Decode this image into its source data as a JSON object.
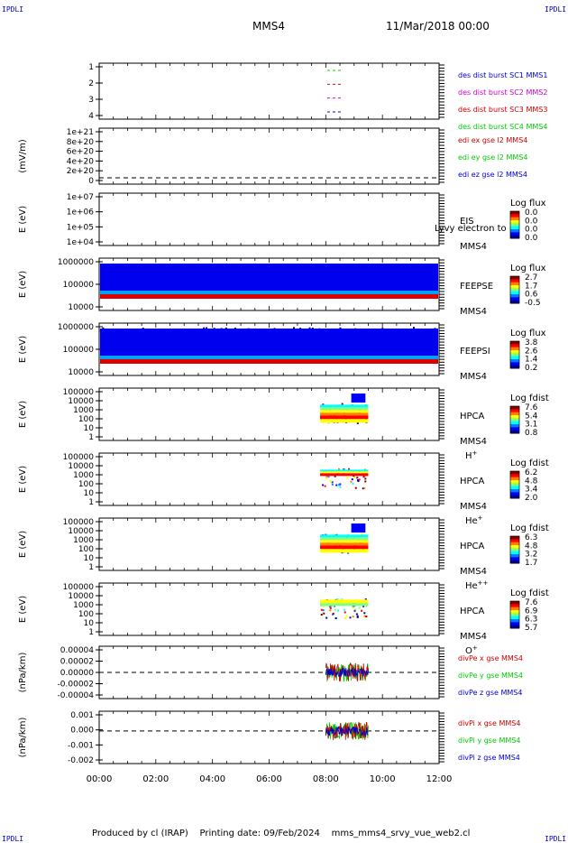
{
  "header": {
    "corner_label": "IPDLI",
    "spacecraft": "MMS4",
    "datetime": "11/Mar/2018 00:00"
  },
  "footer": {
    "produced_by": "Produced by cl (IRAP)",
    "printing_date": "Printing date: 09/Feb/2024",
    "script_name": "mms_mms4_srvy_vue_web2.cl"
  },
  "chart_data": [
    {
      "type": "scatter",
      "ylabel": "",
      "yticks": [
        "1",
        "2",
        "3",
        "4"
      ],
      "x_range": [
        0,
        12
      ],
      "legend": [
        {
          "text": "des dist burst SC1 MMS1",
          "color": "#0000cc"
        },
        {
          "text": "des dist burst SC2 MMS2",
          "color": "#cc00cc"
        },
        {
          "text": "des dist burst SC3 MMS3",
          "color": "#cc0000"
        },
        {
          "text": "des dist burst SC4 MMS4",
          "color": "#00cc00"
        }
      ],
      "series": [
        {
          "y": 1,
          "start": 8.05,
          "end": 8.55,
          "color": "#0000cc"
        },
        {
          "y": 2,
          "start": 8.05,
          "end": 8.55,
          "color": "#cc00cc"
        },
        {
          "y": 3,
          "start": 8.05,
          "end": 8.55,
          "color": "#cc0000"
        },
        {
          "y": 4,
          "start": 8.05,
          "end": 8.55,
          "color": "#00cc00"
        }
      ]
    },
    {
      "type": "line",
      "ylabel": "(mV/m)",
      "yticks": [
        "1e+21",
        "8e+20",
        "6e+20",
        "4e+20",
        "2e+20",
        "0"
      ],
      "x_range": [
        0,
        12
      ],
      "legend": [
        {
          "text": "edi ex gse l2 MMS4",
          "color": "#cc0000"
        },
        {
          "text": "edi ey gse l2 MMS4",
          "color": "#00cc00"
        },
        {
          "text": "edi ez gse l2 MMS4",
          "color": "#0000cc"
        }
      ]
    },
    {
      "type": "heatmap",
      "ylabel": "E (eV)",
      "yticks": [
        "1e+07",
        "1e+06",
        "1e+05",
        "1e+04"
      ],
      "instrument": "EIS",
      "spacecraft": "MMS4",
      "overlay_text": "Lyvy electron to",
      "colorbar_title": "Log flux",
      "colorbar_ticks": [
        "0.0",
        "0.0",
        "0.0",
        "0.0"
      ]
    },
    {
      "type": "heatmap",
      "ylabel": "E (eV)",
      "yticks": [
        "1000000",
        "100000",
        "10000"
      ],
      "instrument": "FEEPSE",
      "spacecraft": "MMS4",
      "colorbar_title": "Log flux",
      "colorbar_ticks": [
        "2.7",
        "1.7",
        "0.6",
        "-0.5"
      ],
      "time_coverage": [
        0,
        12
      ]
    },
    {
      "type": "heatmap",
      "ylabel": "E (eV)",
      "yticks": [
        "1000000",
        "100000",
        "10000"
      ],
      "instrument": "FEEPSI",
      "spacecraft": "MMS4",
      "colorbar_title": "Log flux",
      "colorbar_ticks": [
        "3.8",
        "2.6",
        "1.4",
        "0.2"
      ],
      "time_coverage": [
        0,
        12
      ]
    },
    {
      "type": "heatmap",
      "ylabel": "E (eV)",
      "yticks": [
        "100000",
        "10000",
        "1000",
        "100",
        "10",
        "1"
      ],
      "instrument": "HPCA",
      "spacecraft": "MMS4",
      "species": "H",
      "species_sup": "+",
      "colorbar_title": "Log fdist",
      "colorbar_ticks": [
        "7.6",
        "5.4",
        "3.1",
        "0.8"
      ],
      "time_coverage": [
        7.8,
        9.5
      ]
    },
    {
      "type": "heatmap",
      "ylabel": "E (eV)",
      "yticks": [
        "100000",
        "10000",
        "1000",
        "100",
        "10",
        "1"
      ],
      "instrument": "HPCA",
      "spacecraft": "MMS4",
      "species": "He",
      "species_sup": "+",
      "colorbar_title": "Log fdist",
      "colorbar_ticks": [
        "6.2",
        "4.8",
        "3.4",
        "2.0"
      ],
      "time_coverage": [
        7.8,
        9.5
      ]
    },
    {
      "type": "heatmap",
      "ylabel": "E (eV)",
      "yticks": [
        "100000",
        "10000",
        "1000",
        "100",
        "10",
        "1"
      ],
      "instrument": "HPCA",
      "spacecraft": "MMS4",
      "species": "He",
      "species_sup": "++",
      "colorbar_title": "Log fdist",
      "colorbar_ticks": [
        "6.3",
        "4.8",
        "3.2",
        "1.7"
      ],
      "time_coverage": [
        7.8,
        9.5
      ]
    },
    {
      "type": "heatmap",
      "ylabel": "E (eV)",
      "yticks": [
        "100000",
        "10000",
        "1000",
        "100",
        "10",
        "1"
      ],
      "instrument": "HPCA",
      "spacecraft": "MMS4",
      "species": "O",
      "species_sup": "+",
      "colorbar_title": "Log fdist",
      "colorbar_ticks": [
        "7.6",
        "6.9",
        "6.3",
        "5.7"
      ],
      "time_coverage": [
        7.8,
        9.5
      ]
    },
    {
      "type": "line",
      "ylabel": "(nPa/km)",
      "yticks": [
        "0.00004",
        "0.00002",
        "0.00000",
        "-0.00002",
        "-0.00004"
      ],
      "ylim": [
        -5e-05,
        5e-05
      ],
      "legend": [
        {
          "text": "divPe x gse MMS4",
          "color": "#cc0000"
        },
        {
          "text": "divPe y gse MMS4",
          "color": "#00cc00"
        },
        {
          "text": "divPe z gse MMS4",
          "color": "#0000cc"
        }
      ],
      "time_coverage": [
        8.0,
        9.5
      ]
    },
    {
      "type": "line",
      "ylabel": "(nPa/km)",
      "yticks": [
        "0.001",
        "0.000",
        "-0.001",
        "-0.002"
      ],
      "ylim": [
        -0.0028,
        0.0017
      ],
      "legend": [
        {
          "text": "divPi x gse MMS4",
          "color": "#cc0000"
        },
        {
          "text": "divPi y gse MMS4",
          "color": "#00cc00"
        },
        {
          "text": "divPi z gse MMS4",
          "color": "#0000cc"
        }
      ],
      "time_coverage": [
        8.0,
        9.5
      ]
    }
  ],
  "x_axis": {
    "ticks": [
      "00:00",
      "02:00",
      "04:00",
      "06:00",
      "08:00",
      "10:00",
      "12:00"
    ],
    "range": [
      0,
      12
    ]
  }
}
